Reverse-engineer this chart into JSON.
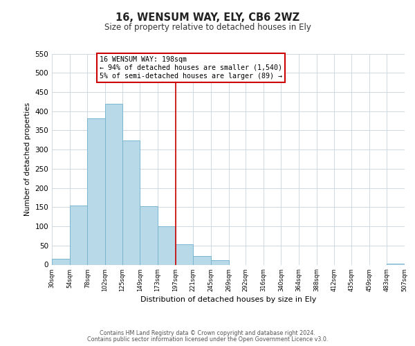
{
  "title": "16, WENSUM WAY, ELY, CB6 2WZ",
  "subtitle": "Size of property relative to detached houses in Ely",
  "xlabel": "Distribution of detached houses by size in Ely",
  "ylabel": "Number of detached properties",
  "footnote1": "Contains HM Land Registry data © Crown copyright and database right 2024.",
  "footnote2": "Contains public sector information licensed under the Open Government Licence v3.0.",
  "bar_left_edges": [
    30,
    54,
    78,
    102,
    125,
    149,
    173,
    197,
    221,
    245,
    269,
    292,
    316,
    340,
    364,
    388,
    412,
    435,
    459,
    483
  ],
  "bar_widths": [
    24,
    24,
    24,
    23,
    24,
    24,
    24,
    24,
    24,
    24,
    23,
    24,
    24,
    24,
    24,
    24,
    23,
    24,
    24,
    24
  ],
  "bar_heights": [
    15,
    155,
    382,
    419,
    323,
    153,
    100,
    53,
    22,
    12,
    0,
    0,
    0,
    0,
    0,
    0,
    0,
    0,
    0,
    3
  ],
  "bar_color": "#b8d9e8",
  "bar_edge_color": "#7ab5d0",
  "vline_x": 197,
  "vline_color": "#cc0000",
  "annotation_title": "16 WENSUM WAY: 198sqm",
  "annotation_line1": "← 94% of detached houses are smaller (1,540)",
  "annotation_line2": "5% of semi-detached houses are larger (89) →",
  "annotation_box_color": "#cc0000",
  "annotation_bg": "#ffffff",
  "ylim": [
    0,
    550
  ],
  "yticks": [
    0,
    50,
    100,
    150,
    200,
    250,
    300,
    350,
    400,
    450,
    500,
    550
  ],
  "xtick_labels": [
    "30sqm",
    "54sqm",
    "78sqm",
    "102sqm",
    "125sqm",
    "149sqm",
    "173sqm",
    "197sqm",
    "221sqm",
    "245sqm",
    "269sqm",
    "292sqm",
    "316sqm",
    "340sqm",
    "364sqm",
    "388sqm",
    "412sqm",
    "435sqm",
    "459sqm",
    "483sqm",
    "507sqm"
  ],
  "xtick_positions": [
    30,
    54,
    78,
    102,
    125,
    149,
    173,
    197,
    221,
    245,
    269,
    292,
    316,
    340,
    364,
    388,
    412,
    435,
    459,
    483,
    507
  ],
  "grid_color": "#d0d8e0",
  "bg_color": "#ffffff",
  "xlim_left": 30,
  "xlim_right": 507
}
